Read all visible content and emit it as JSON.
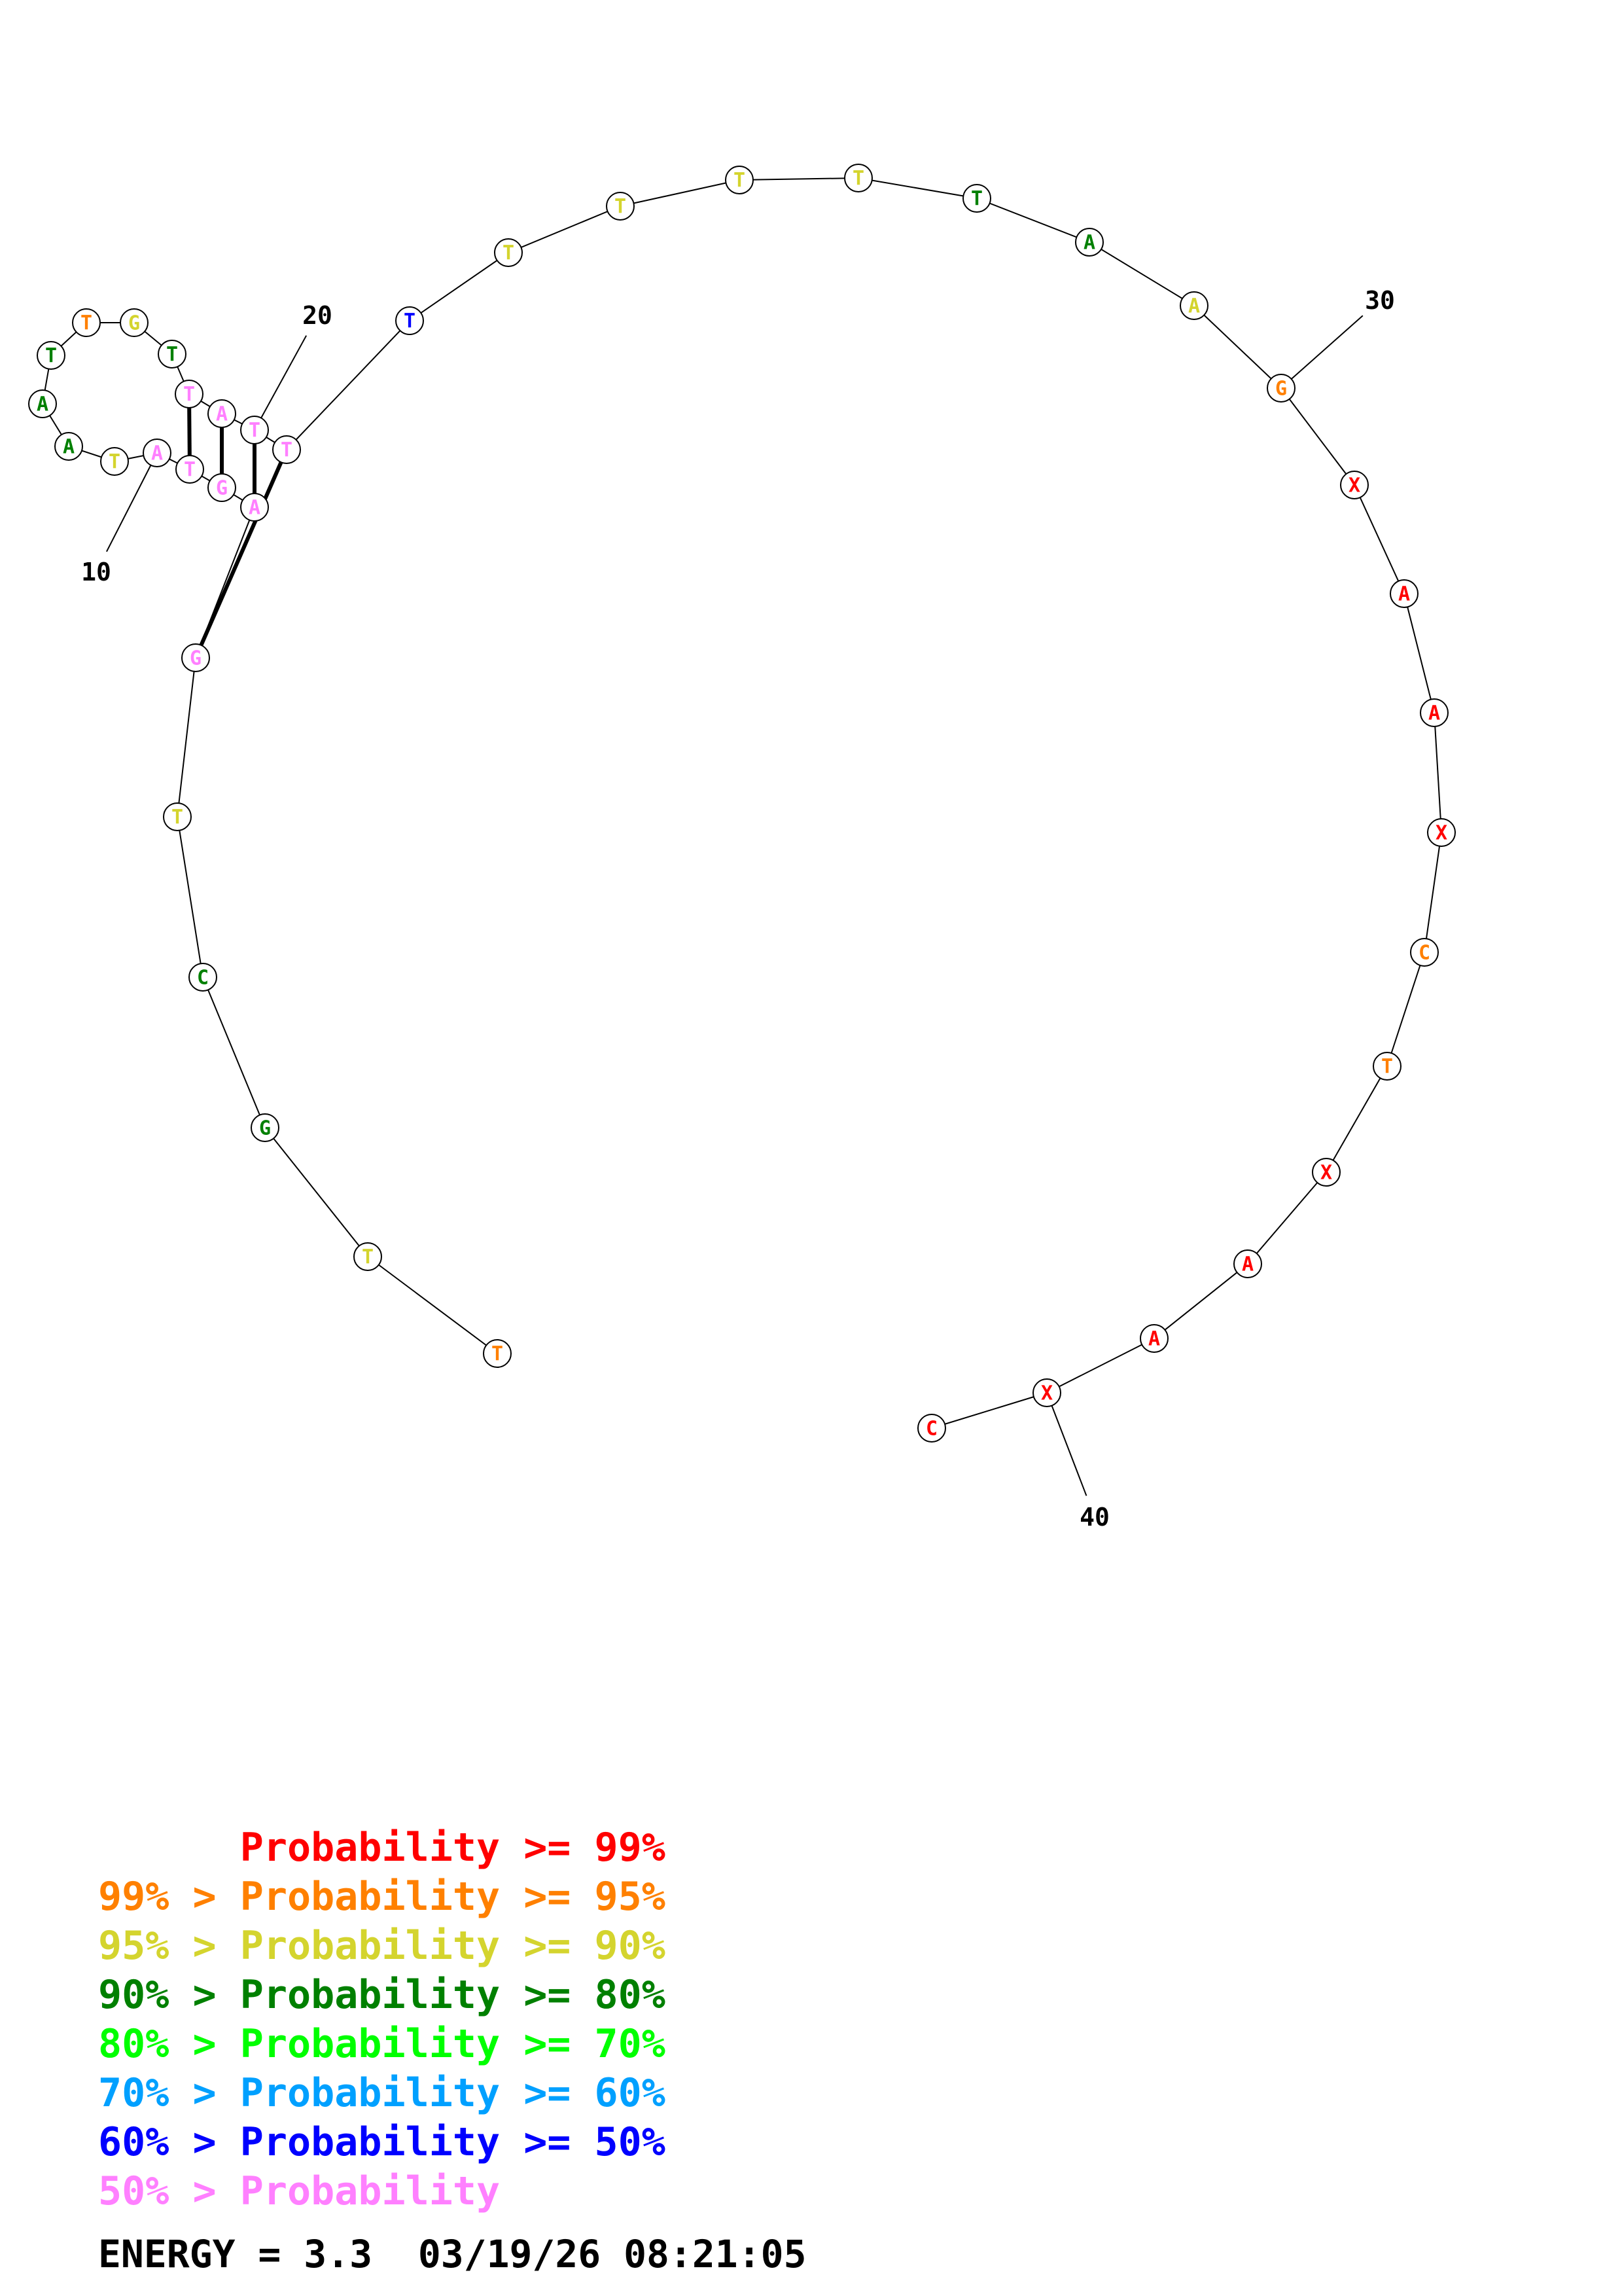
{
  "colors": {
    "red": "#ff0000",
    "orange": "#ff8000",
    "yellow": "#d4d42e",
    "dark_green": "#008000",
    "green": "#00ff00",
    "light_blue": "#00a0ff",
    "blue": "#0000ff",
    "pink": "#ff80ff"
  },
  "nucleotides": [
    {
      "i": 1,
      "base": "T",
      "color": "orange"
    },
    {
      "i": 2,
      "base": "T",
      "color": "yellow"
    },
    {
      "i": 3,
      "base": "G",
      "color": "dark_green"
    },
    {
      "i": 4,
      "base": "C",
      "color": "dark_green"
    },
    {
      "i": 5,
      "base": "T",
      "color": "yellow"
    },
    {
      "i": 6,
      "base": "G",
      "color": "pink"
    },
    {
      "i": 7,
      "base": "A",
      "color": "pink"
    },
    {
      "i": 8,
      "base": "G",
      "color": "pink"
    },
    {
      "i": 9,
      "base": "T",
      "color": "pink"
    },
    {
      "i": 10,
      "base": "A",
      "color": "pink"
    },
    {
      "i": 11,
      "base": "T",
      "color": "yellow"
    },
    {
      "i": 12,
      "base": "A",
      "color": "dark_green"
    },
    {
      "i": 13,
      "base": "A",
      "color": "dark_green"
    },
    {
      "i": 14,
      "base": "T",
      "color": "dark_green"
    },
    {
      "i": 15,
      "base": "T",
      "color": "orange"
    },
    {
      "i": 16,
      "base": "G",
      "color": "yellow"
    },
    {
      "i": 17,
      "base": "T",
      "color": "dark_green"
    },
    {
      "i": 18,
      "base": "T",
      "color": "pink"
    },
    {
      "i": 19,
      "base": "A",
      "color": "pink"
    },
    {
      "i": 20,
      "base": "T",
      "color": "pink"
    },
    {
      "i": 21,
      "base": "T",
      "color": "pink"
    },
    {
      "i": 22,
      "base": "T",
      "color": "blue"
    },
    {
      "i": 23,
      "base": "T",
      "color": "yellow"
    },
    {
      "i": 24,
      "base": "T",
      "color": "yellow"
    },
    {
      "i": 25,
      "base": "T",
      "color": "yellow"
    },
    {
      "i": 26,
      "base": "T",
      "color": "yellow"
    },
    {
      "i": 27,
      "base": "T",
      "color": "dark_green"
    },
    {
      "i": 28,
      "base": "A",
      "color": "dark_green"
    },
    {
      "i": 29,
      "base": "A",
      "color": "yellow"
    },
    {
      "i": 30,
      "base": "G",
      "color": "orange"
    },
    {
      "i": 31,
      "base": "X",
      "color": "red"
    },
    {
      "i": 32,
      "base": "A",
      "color": "red"
    },
    {
      "i": 33,
      "base": "A",
      "color": "red"
    },
    {
      "i": 34,
      "base": "X",
      "color": "red"
    },
    {
      "i": 35,
      "base": "C",
      "color": "orange"
    },
    {
      "i": 36,
      "base": "T",
      "color": "orange"
    },
    {
      "i": 37,
      "base": "X",
      "color": "red"
    },
    {
      "i": 38,
      "base": "A",
      "color": "red"
    },
    {
      "i": 39,
      "base": "A",
      "color": "red"
    },
    {
      "i": 40,
      "base": "X",
      "color": "red"
    },
    {
      "i": 41,
      "base": "C",
      "color": "red"
    }
  ],
  "pairs": [
    [
      6,
      21
    ],
    [
      7,
      20
    ],
    [
      8,
      19
    ],
    [
      9,
      18
    ]
  ],
  "position_labels": [
    {
      "text": "10",
      "at": 10
    },
    {
      "text": "20",
      "at": 20
    },
    {
      "text": "30",
      "at": 30
    },
    {
      "text": "40",
      "at": 40
    }
  ],
  "legend": [
    {
      "prefix": "",
      "arrow": "",
      "label": "Probability",
      "cmp": ">=",
      "value": "99%",
      "color": "red"
    },
    {
      "prefix": "99%",
      "arrow": ">",
      "label": "Probability",
      "cmp": ">=",
      "value": "95%",
      "color": "orange"
    },
    {
      "prefix": "95%",
      "arrow": ">",
      "label": "Probability",
      "cmp": ">=",
      "value": "90%",
      "color": "yellow"
    },
    {
      "prefix": "90%",
      "arrow": ">",
      "label": "Probability",
      "cmp": ">=",
      "value": "80%",
      "color": "dark_green"
    },
    {
      "prefix": "80%",
      "arrow": ">",
      "label": "Probability",
      "cmp": ">=",
      "value": "70%",
      "color": "green"
    },
    {
      "prefix": "70%",
      "arrow": ">",
      "label": "Probability",
      "cmp": ">=",
      "value": "60%",
      "color": "light_blue"
    },
    {
      "prefix": "60%",
      "arrow": ">",
      "label": "Probability",
      "cmp": ">=",
      "value": "50%",
      "color": "blue"
    },
    {
      "prefix": "50%",
      "arrow": ">",
      "label": "Probability",
      "cmp": "",
      "value": "",
      "color": "pink"
    }
  ],
  "energy_line": "ENERGY = 3.3  03/19/26 08:21:05"
}
